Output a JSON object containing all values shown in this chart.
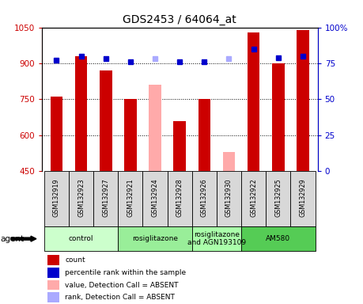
{
  "title": "GDS2453 / 64064_at",
  "samples": [
    "GSM132919",
    "GSM132923",
    "GSM132927",
    "GSM132921",
    "GSM132924",
    "GSM132928",
    "GSM132926",
    "GSM132930",
    "GSM132922",
    "GSM132925",
    "GSM132929"
  ],
  "bar_values": [
    760,
    930,
    870,
    750,
    810,
    660,
    750,
    530,
    1030,
    900,
    1040
  ],
  "bar_absent": [
    false,
    false,
    false,
    false,
    true,
    false,
    false,
    true,
    false,
    false,
    false
  ],
  "percentile_values": [
    77,
    80,
    78,
    76,
    78,
    76,
    76,
    78,
    85,
    79,
    80
  ],
  "percentile_absent": [
    false,
    false,
    false,
    false,
    true,
    false,
    false,
    true,
    false,
    false,
    false
  ],
  "bar_color_present": "#cc0000",
  "bar_color_absent": "#ffaaaa",
  "dot_color_present": "#0000cc",
  "dot_color_absent": "#aaaaff",
  "ylim_left": [
    450,
    1050
  ],
  "ylim_right": [
    0,
    100
  ],
  "yticks_left": [
    450,
    600,
    750,
    900,
    1050
  ],
  "yticks_right": [
    0,
    25,
    50,
    75,
    100
  ],
  "groups": [
    {
      "label": "control",
      "start": 0,
      "end": 3,
      "color": "#ccffcc"
    },
    {
      "label": "rosiglitazone",
      "start": 3,
      "end": 6,
      "color": "#99ee99"
    },
    {
      "label": "rosiglitazone\nand AGN193109",
      "start": 6,
      "end": 8,
      "color": "#aaffaa"
    },
    {
      "label": "AM580",
      "start": 8,
      "end": 11,
      "color": "#55cc55"
    }
  ],
  "agent_label": "agent",
  "legend_items": [
    {
      "label": "count",
      "color": "#cc0000"
    },
    {
      "label": "percentile rank within the sample",
      "color": "#0000cc"
    },
    {
      "label": "value, Detection Call = ABSENT",
      "color": "#ffaaaa"
    },
    {
      "label": "rank, Detection Call = ABSENT",
      "color": "#aaaaff"
    }
  ],
  "sample_cell_color": "#d8d8d8",
  "grid_color": "#000000"
}
